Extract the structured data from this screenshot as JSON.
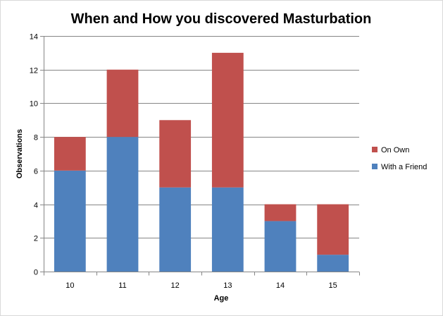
{
  "chart_data": {
    "type": "bar",
    "stacked": true,
    "title": "When and How you discovered Masturbation",
    "xlabel": "Age",
    "ylabel": "Observations",
    "categories": [
      "10",
      "11",
      "12",
      "13",
      "14",
      "15"
    ],
    "series": [
      {
        "name": "With a Friend",
        "color": "#4F81BD",
        "values": [
          6,
          8,
          5,
          5,
          3,
          1
        ]
      },
      {
        "name": "On Own",
        "color": "#C0504D",
        "values": [
          2,
          4,
          4,
          8,
          1,
          3
        ]
      }
    ],
    "ylim": [
      0,
      14
    ],
    "yticks": [
      0,
      2,
      4,
      6,
      8,
      10,
      12,
      14
    ],
    "grid": true,
    "legend_position": "right",
    "legend_order": [
      "On Own",
      "With a Friend"
    ]
  }
}
